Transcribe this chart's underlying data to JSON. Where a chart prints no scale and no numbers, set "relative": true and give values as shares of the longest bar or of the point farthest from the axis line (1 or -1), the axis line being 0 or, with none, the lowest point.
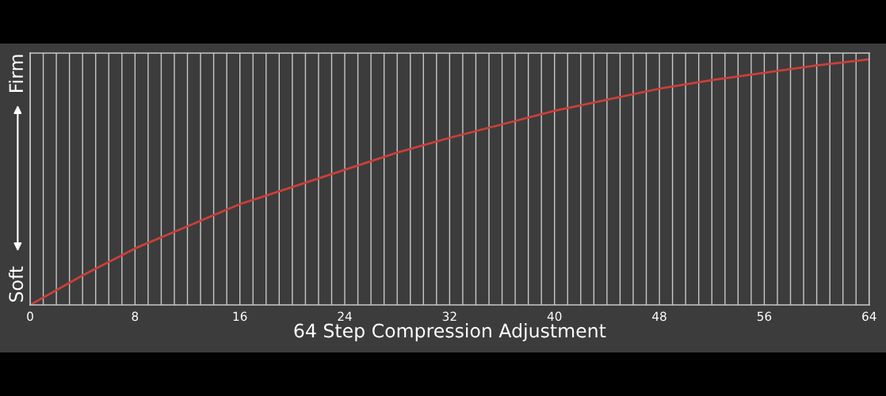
{
  "chart_data": {
    "type": "line",
    "xlabel": "64 Step Compression Adjustment",
    "relative": true,
    "x": [
      0,
      4,
      8,
      12,
      16,
      20,
      24,
      28,
      32,
      36,
      40,
      44,
      48,
      52,
      56,
      60,
      64
    ],
    "series": [
      {
        "color": "#c9403a",
        "values": [
          0,
          0.12,
          0.23,
          0.32,
          0.41,
          0.48,
          0.55,
          0.62,
          0.68,
          0.735,
          0.79,
          0.835,
          0.88,
          0.915,
          0.945,
          0.975,
          1
        ]
      }
    ],
    "xlim": [
      0,
      64
    ],
    "xticks": [
      0,
      {
        "value": 1,
        "label": null
      },
      {
        "value": 2,
        "label": null
      },
      {
        "value": 3,
        "label": null
      },
      {
        "value": 4,
        "label": null
      },
      {
        "value": 5,
        "label": null
      },
      {
        "value": 6,
        "label": null
      },
      {
        "value": 7,
        "label": null
      },
      8,
      {
        "value": 9,
        "label": null
      },
      {
        "value": 10,
        "label": null
      },
      {
        "value": 11,
        "label": null
      },
      {
        "value": 12,
        "label": null
      },
      {
        "value": 13,
        "label": null
      },
      {
        "value": 14,
        "label": null
      },
      {
        "value": 15,
        "label": null
      },
      16,
      {
        "value": 17,
        "label": null
      },
      {
        "value": 18,
        "label": null
      },
      {
        "value": 19,
        "label": null
      },
      {
        "value": 20,
        "label": null
      },
      {
        "value": 21,
        "label": null
      },
      {
        "value": 22,
        "label": null
      },
      {
        "value": 23,
        "label": null
      },
      24,
      {
        "value": 25,
        "label": null
      },
      {
        "value": 26,
        "label": null
      },
      {
        "value": 27,
        "label": null
      },
      {
        "value": 28,
        "label": null
      },
      {
        "value": 29,
        "label": null
      },
      {
        "value": 30,
        "label": null
      },
      {
        "value": 31,
        "label": null
      },
      32,
      {
        "value": 33,
        "label": null
      },
      {
        "value": 34,
        "label": null
      },
      {
        "value": 35,
        "label": null
      },
      {
        "value": 36,
        "label": null
      },
      {
        "value": 37,
        "label": null
      },
      {
        "value": 38,
        "label": null
      },
      {
        "value": 39,
        "label": null
      },
      40,
      {
        "value": 41,
        "label": null
      },
      {
        "value": 42,
        "label": null
      },
      {
        "value": 43,
        "label": null
      },
      {
        "value": 44,
        "label": null
      },
      {
        "value": 45,
        "label": null
      },
      {
        "value": 46,
        "label": null
      },
      {
        "value": 47,
        "label": null
      },
      48,
      {
        "value": 49,
        "label": null
      },
      {
        "value": 50,
        "label": null
      },
      {
        "value": 51,
        "label": null
      },
      {
        "value": 52,
        "label": null
      },
      {
        "value": 53,
        "label": null
      },
      {
        "value": 54,
        "label": null
      },
      {
        "value": 55,
        "label": null
      },
      56,
      {
        "value": 57,
        "label": null
      },
      {
        "value": 58,
        "label": null
      },
      {
        "value": 59,
        "label": null
      },
      {
        "value": 60,
        "label": null
      },
      {
        "value": 61,
        "label": null
      },
      {
        "value": 62,
        "label": null
      },
      {
        "value": 63,
        "label": null
      },
      64
    ],
    "grid": "x",
    "marker": "none",
    "line_style": "solid",
    "annotations": [
      "Soft",
      "Firm"
    ]
  }
}
